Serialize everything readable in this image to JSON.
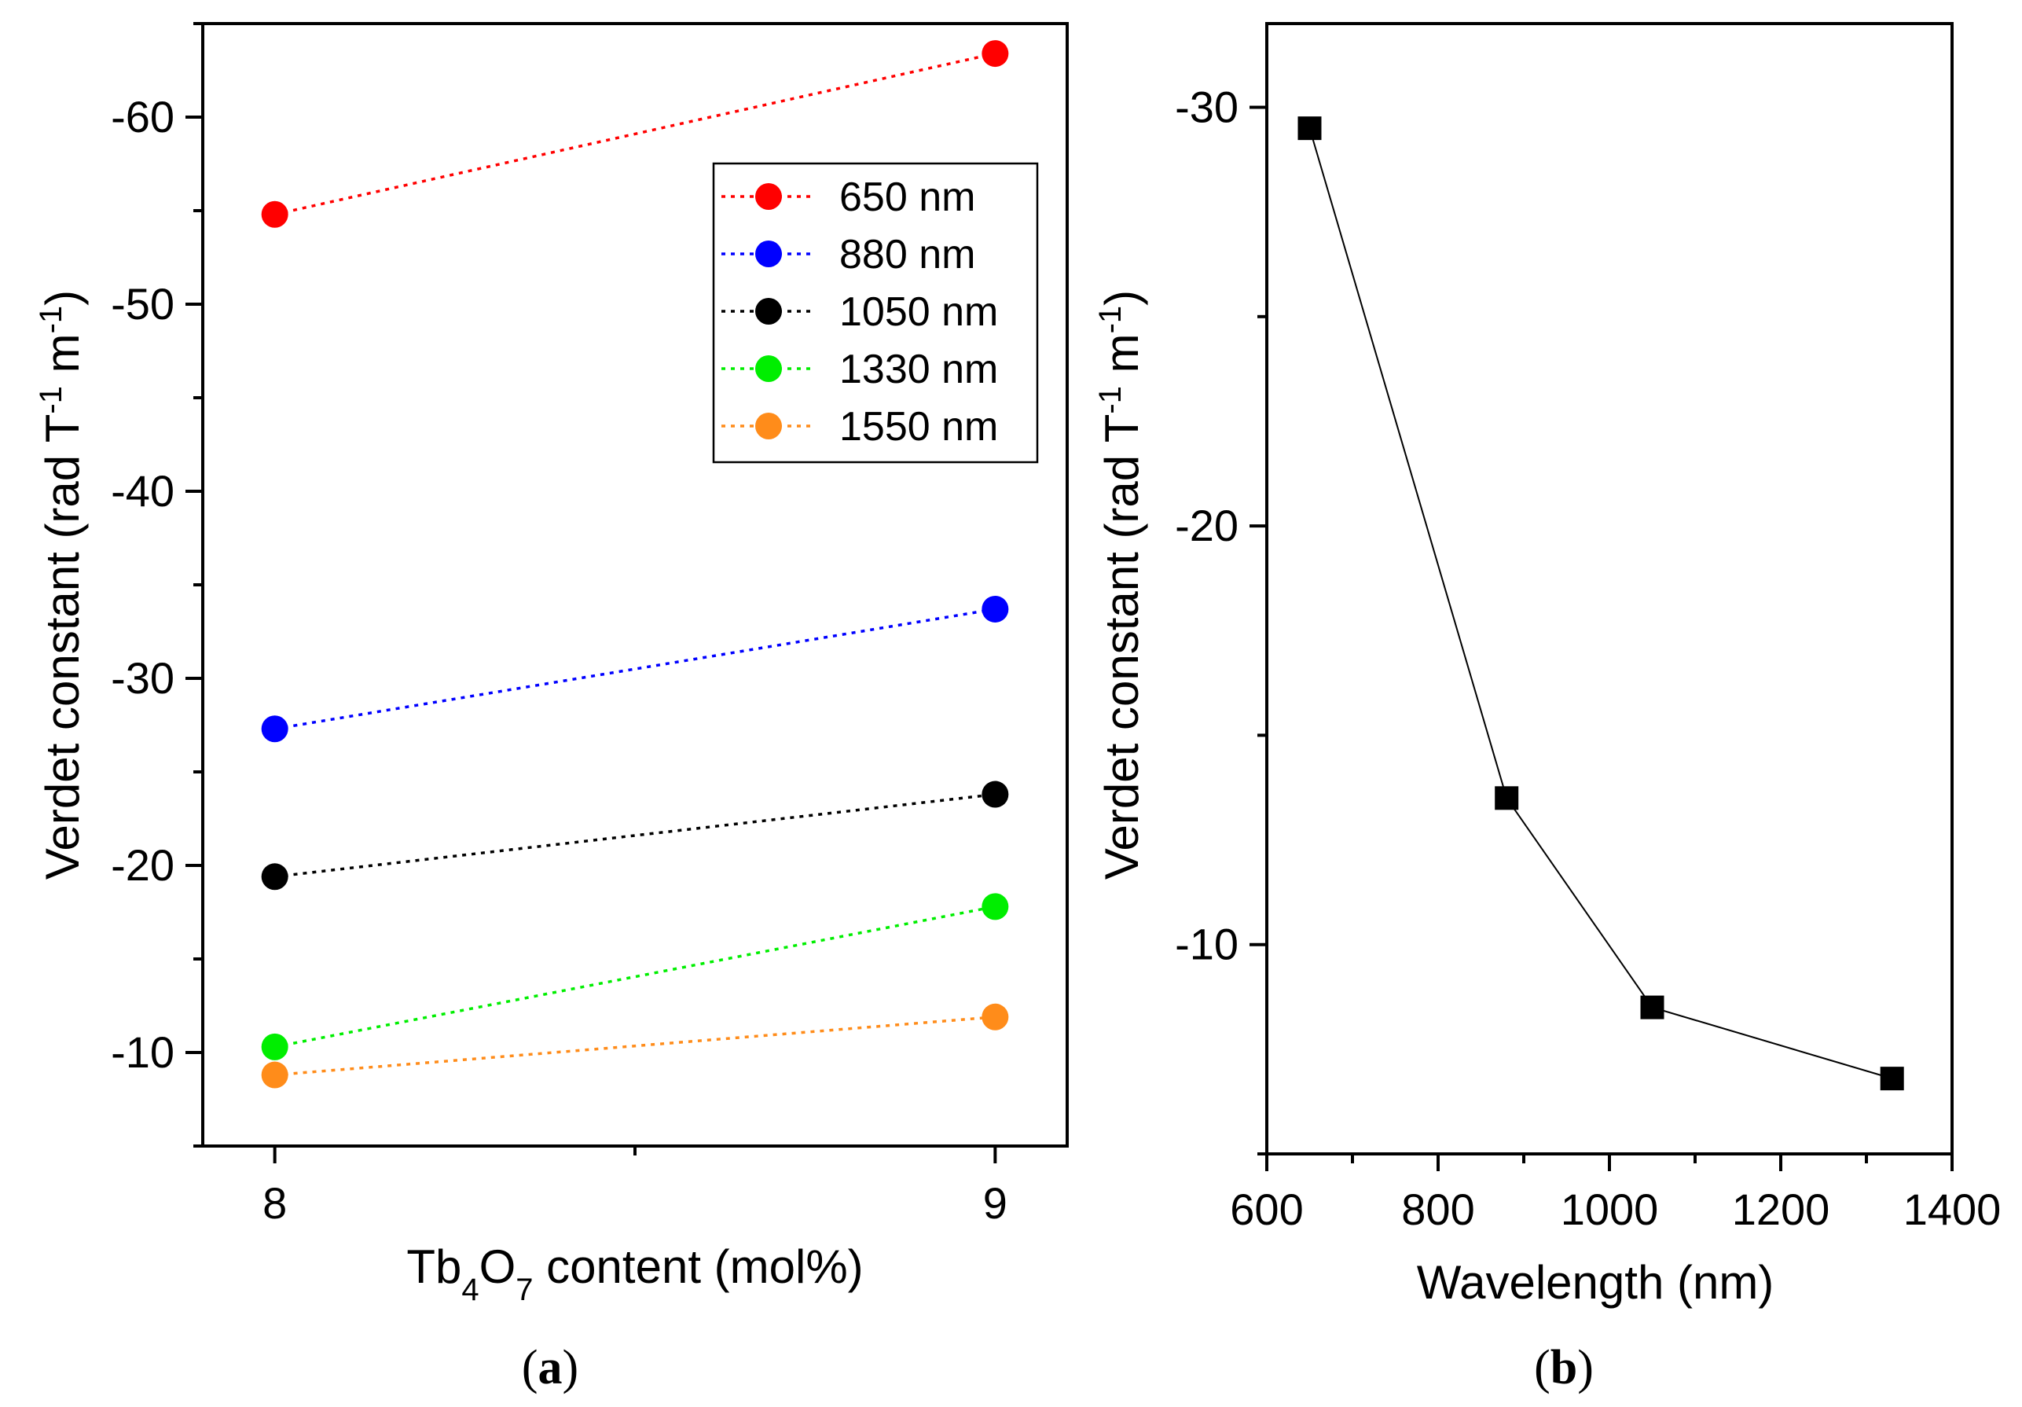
{
  "chart_data": [
    {
      "panel": "a",
      "type": "line",
      "xlabel_parts": [
        {
          "text": "Tb",
          "sub": false
        },
        {
          "text": "4",
          "sub": true
        },
        {
          "text": "O",
          "sub": false
        },
        {
          "text": "7",
          "sub": true
        },
        {
          "text": " content (mol%)",
          "sub": false
        }
      ],
      "ylabel_parts": [
        {
          "text": "Verdet constant (rad T",
          "sup": false
        },
        {
          "text": "-1",
          "sup": true
        },
        {
          "text": " m",
          "sup": false
        },
        {
          "text": "-1",
          "sup": true
        },
        {
          "text": ")",
          "sup": false
        }
      ],
      "x": [
        8,
        9
      ],
      "xlim": [
        7.9,
        9.1
      ],
      "ylim": [
        -5,
        -65
      ],
      "xticks": [
        8,
        9
      ],
      "xtick_labels": [
        "8",
        "9"
      ],
      "yticks": [
        -10,
        -20,
        -30,
        -40,
        -50,
        -60
      ],
      "ytick_labels": [
        "-10",
        "-20",
        "-30",
        "-40",
        "-50",
        "-60"
      ],
      "legend_position": "top-right",
      "series": [
        {
          "name": "650 nm",
          "color": "#ff0000",
          "values": [
            -54.8,
            -63.4
          ]
        },
        {
          "name": "880 nm",
          "color": "#0000ff",
          "values": [
            -27.3,
            -33.7
          ]
        },
        {
          "name": "1050 nm",
          "color": "#000000",
          "values": [
            -19.4,
            -23.8
          ]
        },
        {
          "name": "1330 nm",
          "color": "#00ee00",
          "values": [
            -10.3,
            -17.8
          ]
        },
        {
          "name": "1550 nm",
          "color": "#ff8c1a",
          "values": [
            -8.8,
            -11.9
          ]
        }
      ]
    },
    {
      "panel": "b",
      "type": "line",
      "xlabel": "Wavelength (nm)",
      "ylabel_parts": [
        {
          "text": "Verdet constant (rad T",
          "sup": false
        },
        {
          "text": "-1",
          "sup": true
        },
        {
          "text": " m",
          "sup": false
        },
        {
          "text": "-1",
          "sup": true
        },
        {
          "text": ")",
          "sup": false
        }
      ],
      "x": [
        650,
        880,
        1050,
        1330
      ],
      "values": [
        -29.5,
        -13.5,
        -8.5,
        -6.8
      ],
      "color": "#000000",
      "xlim": [
        600,
        1400
      ],
      "ylim": [
        -5,
        -32
      ],
      "xticks": [
        600,
        800,
        1000,
        1200,
        1400
      ],
      "xtick_labels": [
        "600",
        "800",
        "1000",
        "1200",
        "1400"
      ],
      "yticks": [
        -10,
        -20,
        -30
      ],
      "ytick_labels": [
        "-10",
        "-20",
        "-30"
      ]
    }
  ],
  "panel_labels": {
    "a_open": "(",
    "a_letter": "a",
    "a_close": ")",
    "b_open": "(",
    "b_letter": "b",
    "b_close": ")"
  }
}
